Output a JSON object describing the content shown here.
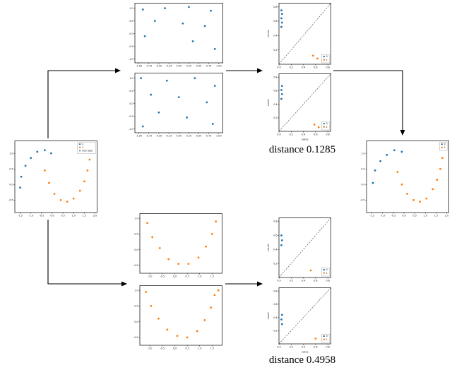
{
  "colors": {
    "c0": "#1f77b4",
    "c1": "#ff7f0e",
    "new": "#888888",
    "axis": "#000000"
  },
  "labels": {
    "distance_top": "distance 0.1285",
    "distance_bottom": "distance 0.4958"
  },
  "chart_data": {
    "input": {
      "type": "scatter",
      "xlim": [
        -1.75,
        2.1
      ],
      "ylim": [
        -0.9,
        1.4
      ],
      "xticks": [
        -1.5,
        -1.0,
        -0.5,
        0.0,
        0.5,
        1.0,
        1.5,
        2.0
      ],
      "yticks": [
        -0.5,
        0.0,
        0.5,
        1.0
      ],
      "fmt": 1,
      "series": [
        {
          "name": "0",
          "color": "c0",
          "points": [
            [
              -1.5,
              -0.1
            ],
            [
              -1.45,
              0.25
            ],
            [
              -1.25,
              0.6
            ],
            [
              -1.0,
              0.85
            ],
            [
              -0.7,
              1.05
            ],
            [
              -0.35,
              1.1
            ],
            [
              -0.05,
              1.0
            ]
          ]
        },
        {
          "name": "1",
          "color": "c1",
          "points": [
            [
              -0.35,
              0.45
            ],
            [
              -0.15,
              0.05
            ],
            [
              0.1,
              -0.3
            ],
            [
              0.4,
              -0.5
            ],
            [
              0.7,
              -0.55
            ],
            [
              1.0,
              -0.45
            ],
            [
              1.3,
              -0.2
            ],
            [
              1.5,
              0.1
            ],
            [
              1.65,
              0.45
            ],
            [
              1.75,
              0.8
            ]
          ]
        }
      ],
      "legend": {
        "pos": "tr",
        "entries": [
          {
            "label": "0",
            "color": "c0"
          },
          {
            "label": "1",
            "color": "c1"
          },
          {
            "label": "new data",
            "color": "new"
          }
        ]
      }
    },
    "top_pair_1": {
      "type": "scatter",
      "xlim": [
        -1.1,
        1.1
      ],
      "ylim": [
        -1.15,
        1.2
      ],
      "xticks": [
        -1.0,
        -0.75,
        -0.5,
        -0.25,
        0.0,
        0.25,
        0.5,
        0.75,
        1.0
      ],
      "yticks": [
        -1.0,
        -0.5,
        0.0,
        0.5,
        1.0
      ],
      "fmt": 2,
      "yfmt": 1,
      "series": [
        {
          "name": "0",
          "color": "c0",
          "points": [
            [
              -0.9,
              0.95
            ],
            [
              -0.35,
              1.0
            ],
            [
              0.25,
              1.05
            ],
            [
              0.8,
              0.9
            ],
            [
              -0.6,
              0.5
            ],
            [
              0.1,
              0.4
            ],
            [
              0.65,
              0.3
            ],
            [
              -0.85,
              -0.1
            ],
            [
              0.35,
              -0.3
            ],
            [
              0.9,
              -0.6
            ]
          ]
        }
      ]
    },
    "top_pair_2": {
      "type": "scatter",
      "xlim": [
        -1.1,
        1.1
      ],
      "ylim": [
        -1.15,
        1.2
      ],
      "xticks": [
        -1.0,
        -0.75,
        -0.5,
        -0.25,
        0.0,
        0.25,
        0.5,
        0.75,
        1.0
      ],
      "yticks": [
        -1.0,
        -0.5,
        0.0,
        0.5,
        1.0
      ],
      "fmt": 2,
      "yfmt": 1,
      "series": [
        {
          "name": "0",
          "color": "c0",
          "points": [
            [
              -0.95,
              1.0
            ],
            [
              -0.3,
              0.9
            ],
            [
              0.4,
              1.0
            ],
            [
              0.9,
              0.7
            ],
            [
              -0.7,
              0.35
            ],
            [
              0.0,
              0.25
            ],
            [
              0.7,
              0.05
            ],
            [
              -0.5,
              -0.35
            ],
            [
              0.2,
              -0.55
            ],
            [
              0.85,
              -0.8
            ],
            [
              -0.9,
              -0.9
            ]
          ]
        }
      ]
    },
    "top_distance_1": {
      "type": "scatter",
      "xlim": [
        0.0,
        0.85
      ],
      "ylim": [
        0.0,
        0.85
      ],
      "xticks": [
        0.0,
        0.2,
        0.4,
        0.6,
        0.8
      ],
      "yticks": [
        0.2,
        0.4,
        0.6,
        0.8
      ],
      "fmt": 1,
      "diagonal": true,
      "ylabel": "count",
      "series": [
        {
          "name": "0",
          "color": "c0",
          "points": [
            [
              0.04,
              0.52
            ],
            [
              0.05,
              0.58
            ],
            [
              0.04,
              0.64
            ],
            [
              0.05,
              0.7
            ],
            [
              0.04,
              0.75
            ]
          ]
        },
        {
          "name": "1",
          "color": "c1",
          "points": [
            [
              0.56,
              0.12
            ],
            [
              0.63,
              0.08
            ]
          ]
        }
      ],
      "legend": {
        "pos": "br",
        "entries": [
          {
            "label": "0",
            "color": "c0"
          },
          {
            "label": "1",
            "color": "c1"
          }
        ]
      }
    },
    "top_distance_2": {
      "type": "scatter",
      "xlim": [
        0.0,
        0.85
      ],
      "ylim": [
        0.0,
        0.85
      ],
      "xticks": [
        0.0,
        0.2,
        0.4,
        0.6,
        0.8
      ],
      "yticks": [
        0.2,
        0.4,
        0.6,
        0.8
      ],
      "fmt": 1,
      "diagonal": true,
      "ylabel": "count",
      "xlabel": "value",
      "series": [
        {
          "name": "0",
          "color": "c0",
          "points": [
            [
              0.04,
              0.48
            ],
            [
              0.05,
              0.55
            ],
            [
              0.04,
              0.61
            ],
            [
              0.05,
              0.67
            ]
          ]
        },
        {
          "name": "1",
          "color": "c1",
          "points": [
            [
              0.58,
              0.1
            ],
            [
              0.65,
              0.06
            ]
          ]
        }
      ],
      "legend": {
        "pos": "br",
        "entries": [
          {
            "label": "0",
            "color": "c0"
          },
          {
            "label": "1",
            "color": "c1"
          }
        ]
      }
    },
    "bottom_pair_1": {
      "type": "scatter",
      "xlim": [
        -1.4,
        1.9
      ],
      "ylim": [
        -0.75,
        1.15
      ],
      "xticks": [
        -1.0,
        -0.5,
        0.0,
        0.5,
        1.0,
        1.5
      ],
      "yticks": [
        -0.5,
        0.0,
        0.5,
        1.0
      ],
      "fmt": 1,
      "series": [
        {
          "name": "1",
          "color": "c1",
          "points": [
            [
              -1.1,
              0.85
            ],
            [
              -0.9,
              0.4
            ],
            [
              -0.6,
              0.05
            ],
            [
              -0.25,
              -0.3
            ],
            [
              0.15,
              -0.45
            ],
            [
              0.55,
              -0.45
            ],
            [
              0.95,
              -0.25
            ],
            [
              1.25,
              0.1
            ],
            [
              1.5,
              0.5
            ],
            [
              1.65,
              0.9
            ]
          ]
        }
      ]
    },
    "bottom_pair_2": {
      "type": "scatter",
      "xlim": [
        -1.4,
        1.9
      ],
      "ylim": [
        -0.75,
        1.15
      ],
      "xticks": [
        -1.0,
        -0.5,
        0.0,
        0.5,
        1.0,
        1.5
      ],
      "yticks": [
        -0.5,
        0.0,
        0.5,
        1.0
      ],
      "fmt": 1,
      "series": [
        {
          "name": "1",
          "color": "c1",
          "points": [
            [
              -1.15,
              0.95
            ],
            [
              -0.95,
              0.5
            ],
            [
              -0.65,
              0.1
            ],
            [
              -0.3,
              -0.25
            ],
            [
              0.1,
              -0.45
            ],
            [
              0.5,
              -0.5
            ],
            [
              0.9,
              -0.3
            ],
            [
              1.2,
              0.05
            ],
            [
              1.45,
              0.45
            ],
            [
              1.6,
              0.85
            ],
            [
              1.75,
              1.0
            ]
          ]
        }
      ]
    },
    "bottom_distance_1": {
      "type": "scatter",
      "xlim": [
        0.0,
        0.85
      ],
      "ylim": [
        0.0,
        0.85
      ],
      "xticks": [
        0.0,
        0.2,
        0.4,
        0.6,
        0.8
      ],
      "yticks": [
        0.2,
        0.4,
        0.6,
        0.8
      ],
      "fmt": 1,
      "diagonal": true,
      "ylabel": "count",
      "series": [
        {
          "name": "0",
          "color": "c0",
          "points": [
            [
              0.04,
              0.46
            ],
            [
              0.05,
              0.53
            ],
            [
              0.04,
              0.6
            ]
          ]
        },
        {
          "name": "1",
          "color": "c1",
          "points": [
            [
              0.52,
              0.1
            ]
          ]
        }
      ],
      "legend": {
        "pos": "br",
        "entries": [
          {
            "label": "0",
            "color": "c0"
          },
          {
            "label": "1",
            "color": "c1"
          }
        ]
      }
    },
    "bottom_distance_2": {
      "type": "scatter",
      "xlim": [
        0.0,
        0.85
      ],
      "ylim": [
        0.0,
        0.85
      ],
      "xticks": [
        0.0,
        0.2,
        0.4,
        0.6,
        0.8
      ],
      "yticks": [
        0.2,
        0.4,
        0.6,
        0.8
      ],
      "fmt": 1,
      "diagonal": true,
      "ylabel": "count",
      "xlabel": "value",
      "series": [
        {
          "name": "0",
          "color": "c0",
          "points": [
            [
              0.05,
              0.3
            ],
            [
              0.04,
              0.37
            ],
            [
              0.05,
              0.44
            ]
          ]
        },
        {
          "name": "1",
          "color": "c1",
          "points": [
            [
              0.6,
              0.08
            ]
          ]
        }
      ],
      "legend": {
        "pos": "br",
        "entries": [
          {
            "label": "0",
            "color": "c0"
          },
          {
            "label": "1",
            "color": "c1"
          }
        ]
      }
    },
    "output": {
      "type": "scatter",
      "xlim": [
        -1.75,
        2.1
      ],
      "ylim": [
        -0.9,
        1.4
      ],
      "xticks": [
        -1.5,
        -1.0,
        -0.5,
        0.0,
        0.5,
        1.0,
        1.5,
        2.0
      ],
      "yticks": [
        -0.5,
        0.0,
        0.5,
        1.0
      ],
      "fmt": 1,
      "series": [
        {
          "name": "0",
          "color": "c0",
          "points": [
            [
              -1.45,
              0.05
            ],
            [
              -1.35,
              0.45
            ],
            [
              -1.1,
              0.75
            ],
            [
              -0.8,
              0.95
            ],
            [
              -0.45,
              1.1
            ],
            [
              -0.1,
              1.05
            ]
          ]
        },
        {
          "name": "1",
          "color": "c1",
          "points": [
            [
              -0.3,
              0.4
            ],
            [
              -0.1,
              0.0
            ],
            [
              0.15,
              -0.3
            ],
            [
              0.45,
              -0.5
            ],
            [
              0.75,
              -0.55
            ],
            [
              1.05,
              -0.45
            ],
            [
              1.35,
              -0.15
            ],
            [
              1.55,
              0.15
            ],
            [
              1.7,
              0.5
            ],
            [
              1.8,
              0.85
            ]
          ]
        }
      ],
      "legend": {
        "pos": "tr",
        "entries": [
          {
            "label": "0",
            "color": "c0"
          },
          {
            "label": "1",
            "color": "c1"
          }
        ]
      }
    }
  }
}
